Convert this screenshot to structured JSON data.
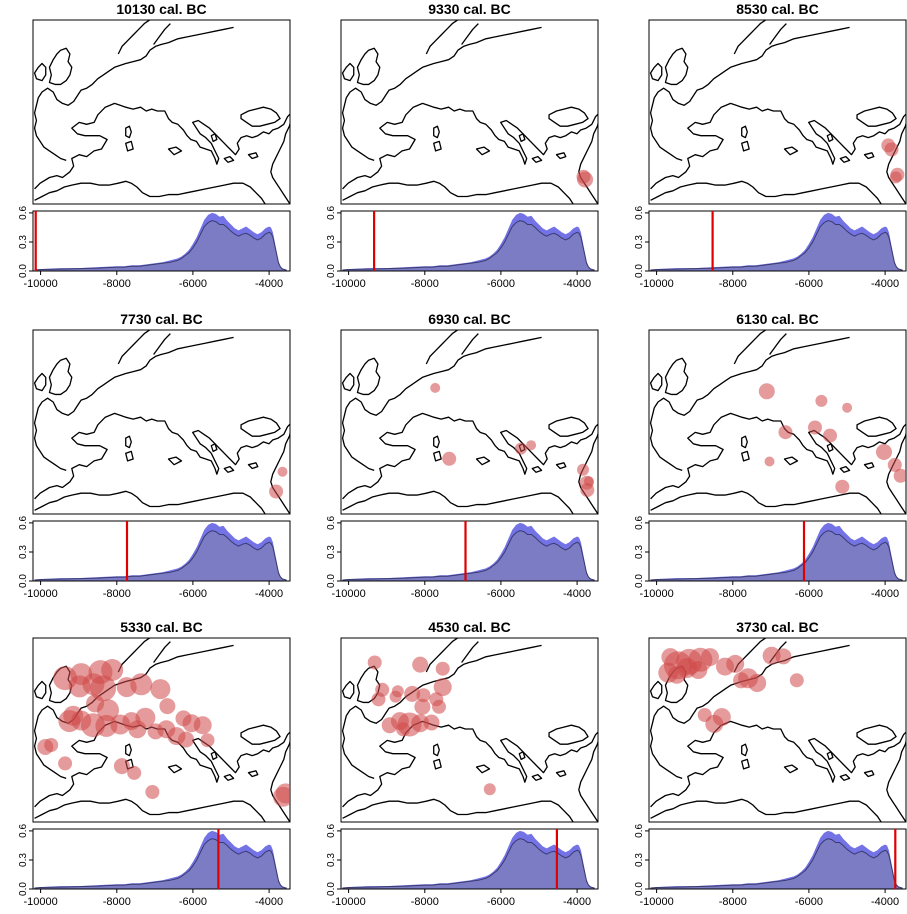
{
  "chart_data": {
    "type": "area",
    "colors": {
      "site": "#d04848",
      "spd_fill": "#5a5ae0",
      "spd_band": "#7f7fb8",
      "marker": "#e00000"
    },
    "xlim": [
      -10200,
      -3450
    ],
    "ylim": [
      0,
      0.62
    ],
    "xticks": [
      -10000,
      -8000,
      -6000,
      -4000
    ],
    "xtick_labels": [
      "-10000",
      "-8000",
      "-6000",
      "-4000"
    ],
    "yticks": [
      0.0,
      0.3,
      0.6
    ],
    "ytick_labels": [
      "0.0",
      "0.3",
      "0.6"
    ],
    "spd": {
      "x": [
        -10150,
        -10000,
        -9500,
        -9000,
        -8500,
        -8000,
        -7800,
        -7600,
        -7400,
        -7200,
        -7000,
        -6800,
        -6600,
        -6400,
        -6300,
        -6200,
        -6100,
        -6000,
        -5900,
        -5800,
        -5700,
        -5600,
        -5500,
        -5400,
        -5300,
        -5200,
        -5100,
        -5000,
        -4900,
        -4800,
        -4700,
        -4600,
        -4500,
        -4400,
        -4300,
        -4200,
        -4100,
        -4000,
        -3950,
        -3900,
        -3850,
        -3800,
        -3750,
        -3700,
        -3650,
        -3600,
        -3550
      ],
      "upper": [
        0.01,
        0.02,
        0.03,
        0.03,
        0.04,
        0.05,
        0.05,
        0.06,
        0.06,
        0.07,
        0.08,
        0.09,
        0.11,
        0.13,
        0.15,
        0.18,
        0.22,
        0.28,
        0.35,
        0.44,
        0.53,
        0.58,
        0.6,
        0.59,
        0.56,
        0.57,
        0.52,
        0.48,
        0.44,
        0.42,
        0.44,
        0.46,
        0.43,
        0.4,
        0.38,
        0.4,
        0.44,
        0.46,
        0.45,
        0.4,
        0.3,
        0.2,
        0.1,
        0.05,
        0.03,
        0.02,
        0.01
      ],
      "mean": [
        0.01,
        0.015,
        0.02,
        0.025,
        0.03,
        0.04,
        0.04,
        0.05,
        0.05,
        0.06,
        0.07,
        0.08,
        0.09,
        0.11,
        0.13,
        0.16,
        0.19,
        0.24,
        0.3,
        0.38,
        0.46,
        0.5,
        0.52,
        0.51,
        0.48,
        0.48,
        0.45,
        0.41,
        0.38,
        0.36,
        0.38,
        0.39,
        0.37,
        0.34,
        0.32,
        0.34,
        0.38,
        0.4,
        0.39,
        0.35,
        0.26,
        0.17,
        0.08,
        0.04,
        0.02,
        0.015,
        0.01
      ]
    },
    "panels": [
      {
        "title": "10130 cal. BC",
        "year": -10130,
        "sites": []
      },
      {
        "title": "9330 cal. BC",
        "year": -9330,
        "sites": [
          [
            35.3,
            33.0,
            7
          ],
          [
            35.6,
            32.6,
            8
          ]
        ]
      },
      {
        "title": "8530 cal. BC",
        "year": -8530,
        "sites": [
          [
            34.7,
            37.6,
            7
          ],
          [
            35.3,
            37.0,
            7
          ],
          [
            36.4,
            33.3,
            7
          ],
          [
            36.1,
            32.9,
            6
          ]
        ]
      },
      {
        "title": "7730 cal. BC",
        "year": -7730,
        "sites": [
          [
            36.6,
            35.2,
            5
          ],
          [
            35.4,
            32.3,
            7
          ]
        ]
      },
      {
        "title": "6930 cal. BC",
        "year": -6930,
        "sites": [
          [
            7.6,
            47.5,
            5
          ],
          [
            10.2,
            37.1,
            7
          ],
          [
            23.6,
            38.6,
            6
          ],
          [
            25.5,
            39.1,
            5
          ],
          [
            35.2,
            35.5,
            6
          ],
          [
            35.9,
            33.6,
            7
          ],
          [
            36.0,
            32.5,
            7
          ],
          [
            36.3,
            33.8,
            5
          ]
        ]
      },
      {
        "title": "6130 cal. BC",
        "year": -6130,
        "sites": [
          [
            12.0,
            47.0,
            8
          ],
          [
            22.2,
            45.6,
            6
          ],
          [
            27.0,
            44.6,
            5
          ],
          [
            15.5,
            41.0,
            7
          ],
          [
            21.0,
            41.7,
            7
          ],
          [
            23.8,
            40.5,
            7
          ],
          [
            33.9,
            38.1,
            8
          ],
          [
            35.9,
            36.2,
            7
          ],
          [
            12.5,
            36.7,
            5
          ],
          [
            26.1,
            33.0,
            7
          ],
          [
            37.0,
            34.6,
            7
          ]
        ]
      },
      {
        "title": "5330 cal. BC",
        "year": -5330,
        "sites": [
          [
            -4.0,
            50.1,
            12
          ],
          [
            -1.0,
            50.7,
            11
          ],
          [
            2.6,
            51.0,
            12
          ],
          [
            4.8,
            51.3,
            11
          ],
          [
            1.3,
            49.2,
            11
          ],
          [
            3.1,
            48.6,
            13
          ],
          [
            -1.3,
            48.9,
            11
          ],
          [
            7.5,
            48.8,
            10
          ],
          [
            10.2,
            49.2,
            11
          ],
          [
            13.8,
            48.5,
            10
          ],
          [
            1.6,
            46.4,
            9
          ],
          [
            4.0,
            45.4,
            11
          ],
          [
            -2.5,
            44.6,
            10
          ],
          [
            -3.2,
            43.8,
            11
          ],
          [
            -1.0,
            43.9,
            10
          ],
          [
            1.2,
            43.2,
            12
          ],
          [
            3.7,
            43.1,
            11
          ],
          [
            6.3,
            43.3,
            10
          ],
          [
            8.4,
            43.8,
            9
          ],
          [
            9.5,
            42.6,
            9
          ],
          [
            11.0,
            44.3,
            10
          ],
          [
            12.9,
            42.3,
            8
          ],
          [
            14.9,
            42.6,
            9
          ],
          [
            16.8,
            41.6,
            9
          ],
          [
            18.6,
            41.1,
            8
          ],
          [
            19.6,
            43.5,
            9
          ],
          [
            21.7,
            43.2,
            9
          ],
          [
            22.6,
            41.0,
            7
          ],
          [
            15.1,
            46.0,
            8
          ],
          [
            18.1,
            44.2,
            8
          ],
          [
            -7.7,
            40.0,
            8
          ],
          [
            -6.6,
            40.3,
            7
          ],
          [
            -4.0,
            37.6,
            7
          ],
          [
            6.6,
            37.2,
            8
          ],
          [
            8.9,
            36.2,
            7
          ],
          [
            12.3,
            33.4,
            7
          ],
          [
            37.2,
            33.2,
            10
          ],
          [
            36.7,
            32.7,
            10
          ]
        ]
      },
      {
        "title": "4530 cal. BC",
        "year": -4530,
        "sites": [
          [
            -3.7,
            52.4,
            7
          ],
          [
            4.8,
            52.1,
            8
          ],
          [
            9.0,
            51.5,
            7
          ],
          [
            -2.3,
            48.4,
            7
          ],
          [
            0.2,
            47.4,
            6
          ],
          [
            0.6,
            48.2,
            6
          ],
          [
            -3.0,
            47.0,
            7
          ],
          [
            3.3,
            47.8,
            8
          ],
          [
            5.4,
            47.6,
            7
          ],
          [
            7.8,
            47.0,
            7
          ],
          [
            9.0,
            48.8,
            9
          ],
          [
            8.3,
            45.9,
            7
          ],
          [
            5.2,
            45.9,
            8
          ],
          [
            1.0,
            43.8,
            9
          ],
          [
            2.8,
            43.3,
            12
          ],
          [
            4.8,
            43.5,
            9
          ],
          [
            -0.9,
            43.2,
            8
          ],
          [
            1.6,
            42.6,
            7
          ],
          [
            6.9,
            43.6,
            8
          ],
          [
            17.8,
            33.8,
            6
          ]
        ]
      },
      {
        "title": "3730 cal. BC",
        "year": -3730,
        "sites": [
          [
            -6.0,
            53.2,
            9
          ],
          [
            -4.6,
            52.0,
            14
          ],
          [
            -2.5,
            52.5,
            13
          ],
          [
            -0.4,
            52.8,
            12
          ],
          [
            1.4,
            53.2,
            9
          ],
          [
            -6.4,
            50.9,
            10
          ],
          [
            -4.8,
            50.6,
            9
          ],
          [
            -2.9,
            51.6,
            10
          ],
          [
            -0.8,
            51.3,
            9
          ],
          [
            4.2,
            51.8,
            9
          ],
          [
            6.1,
            52.2,
            9
          ],
          [
            12.9,
            53.4,
            9
          ],
          [
            15.1,
            53.3,
            8
          ],
          [
            8.5,
            50.1,
            10
          ],
          [
            7.2,
            49.8,
            8
          ],
          [
            10.2,
            49.4,
            9
          ],
          [
            17.6,
            49.8,
            7
          ],
          [
            3.6,
            44.4,
            9
          ],
          [
            2.2,
            43.4,
            9
          ],
          [
            0.4,
            44.7,
            7
          ]
        ]
      }
    ]
  }
}
